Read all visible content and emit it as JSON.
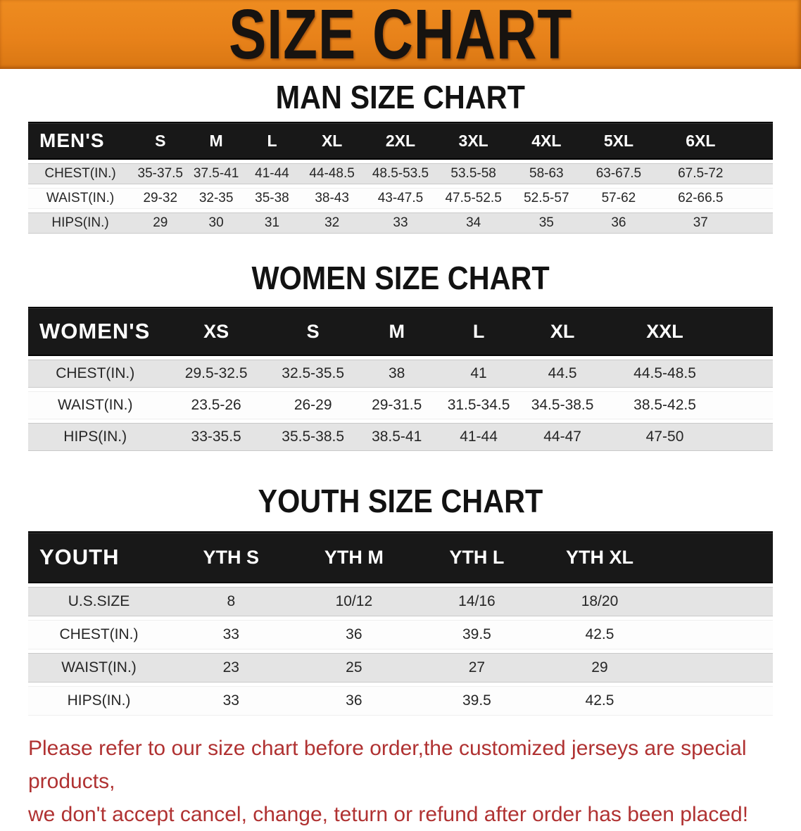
{
  "banner": {
    "title": "SIZE CHART"
  },
  "colors": {
    "banner_orange": "#E8821A",
    "table_header_black": "#181818",
    "row_gray": "#E4E4E4",
    "row_white": "#FDFDFD",
    "disclaimer_red": "#B03232"
  },
  "sections": [
    {
      "id": "men",
      "heading": "MAN SIZE CHART",
      "header_label": "MEN'S",
      "sizes": [
        "S",
        "M",
        "L",
        "XL",
        "2XL",
        "3XL",
        "4XL",
        "5XL",
        "6XL"
      ],
      "rows": [
        {
          "label": "CHEST(IN.)",
          "values": [
            "35-37.5",
            "37.5-41",
            "41-44",
            "44-48.5",
            "48.5-53.5",
            "53.5-58",
            "58-63",
            "63-67.5",
            "67.5-72"
          ]
        },
        {
          "label": "WAIST(IN.)",
          "values": [
            "29-32",
            "32-35",
            "35-38",
            "38-43",
            "43-47.5",
            "47.5-52.5",
            "52.5-57",
            "57-62",
            "62-66.5"
          ]
        },
        {
          "label": "HIPS(IN.)",
          "values": [
            "29",
            "30",
            "31",
            "32",
            "33",
            "34",
            "35",
            "36",
            "37"
          ]
        }
      ]
    },
    {
      "id": "women",
      "heading": "WOMEN SIZE CHART",
      "header_label": "WOMEN'S",
      "sizes": [
        "XS",
        "S",
        "M",
        "L",
        "XL",
        "XXL"
      ],
      "rows": [
        {
          "label": "CHEST(IN.)",
          "values": [
            "29.5-32.5",
            "32.5-35.5",
            "38",
            "41",
            "44.5",
            "44.5-48.5"
          ]
        },
        {
          "label": "WAIST(IN.)",
          "values": [
            "23.5-26",
            "26-29",
            "29-31.5",
            "31.5-34.5",
            "34.5-38.5",
            "38.5-42.5"
          ]
        },
        {
          "label": "HIPS(IN.)",
          "values": [
            "33-35.5",
            "35.5-38.5",
            "38.5-41",
            "41-44",
            "44-47",
            "47-50"
          ]
        }
      ]
    },
    {
      "id": "youth",
      "heading": "YOUTH SIZE CHART",
      "header_label": "YOUTH",
      "sizes": [
        "YTH S",
        "YTH M",
        "YTH L",
        "YTH XL"
      ],
      "rows": [
        {
          "label": "U.S.SIZE",
          "values": [
            "8",
            "10/12",
            "14/16",
            "18/20"
          ]
        },
        {
          "label": "CHEST(IN.)",
          "values": [
            "33",
            "36",
            "39.5",
            "42.5"
          ]
        },
        {
          "label": "WAIST(IN.)",
          "values": [
            "23",
            "25",
            "27",
            "29"
          ]
        },
        {
          "label": "HIPS(IN.)",
          "values": [
            "33",
            "36",
            "39.5",
            "42.5"
          ]
        }
      ]
    }
  ],
  "footer": {
    "line1": "Please refer to our size chart before order,the customized jerseys are special products,",
    "line2": "we don't accept cancel, change, teturn or refund after order has been placed!"
  }
}
